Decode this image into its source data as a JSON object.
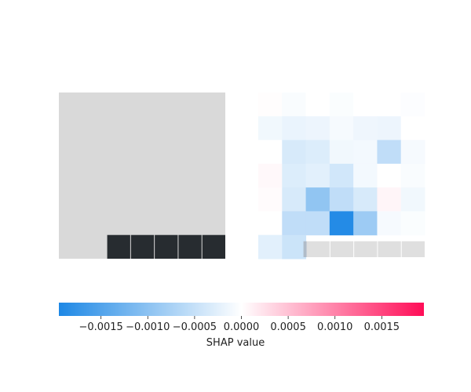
{
  "chart_data": {
    "type": "heatmap",
    "description_note": "",
    "panels": [
      {
        "kind": "input-image",
        "rows": 7,
        "cols": 7,
        "background_color": "#d9d9d9",
        "cells": [
          {
            "row": 6,
            "col": 2,
            "color": "#272c30"
          },
          {
            "row": 6,
            "col": 3,
            "color": "#272c30"
          },
          {
            "row": 6,
            "col": 4,
            "color": "#272c30"
          },
          {
            "row": 6,
            "col": 5,
            "color": "#272c30"
          },
          {
            "row": 6,
            "col": 6,
            "color": "#272c30"
          }
        ]
      },
      {
        "kind": "shap-values",
        "rows": 7,
        "cols": 7,
        "values": [
          [
            2e-05,
            -5e-05,
            0.0,
            -4e-05,
            0.0,
            0.0,
            -3e-05
          ],
          [
            -0.00012,
            -0.00018,
            -0.00016,
            -8e-05,
            -0.00014,
            -0.00016,
            0.0
          ],
          [
            0.0,
            -0.00035,
            -0.0003,
            -0.00012,
            -0.0001,
            -0.00055,
            -8e-05
          ],
          [
            6e-05,
            -0.0003,
            -0.00025,
            -0.0004,
            -0.0001,
            0.0,
            -5e-05
          ],
          [
            3e-05,
            -0.00035,
            -0.00095,
            -0.00055,
            -0.00035,
            8e-05,
            -0.00012
          ],
          [
            0.0,
            -0.00055,
            -0.00055,
            -0.0019,
            -0.00085,
            -8e-05,
            -4e-05
          ],
          [
            -0.00025,
            -0.00045,
            null,
            null,
            null,
            null,
            null
          ]
        ],
        "overlay_bottom_row": {
          "from_col": 2,
          "to_col": 6,
          "color": "#d9d9d9",
          "alpha": 0.85
        }
      }
    ],
    "colorbar": {
      "range": [
        -0.00195,
        0.00195
      ],
      "colors": {
        "negative": "#1e88e5",
        "zero": "#ffffff",
        "positive": "#ff0d57"
      },
      "ticks": [
        -0.0015,
        -0.001,
        -0.0005,
        0.0,
        0.0005,
        0.001,
        0.0015
      ],
      "tick_labels": [
        "−0.0015",
        "−0.0010",
        "−0.0005",
        "0.0000",
        "0.0005",
        "0.0010",
        "0.0015"
      ],
      "label": "SHAP value"
    }
  }
}
